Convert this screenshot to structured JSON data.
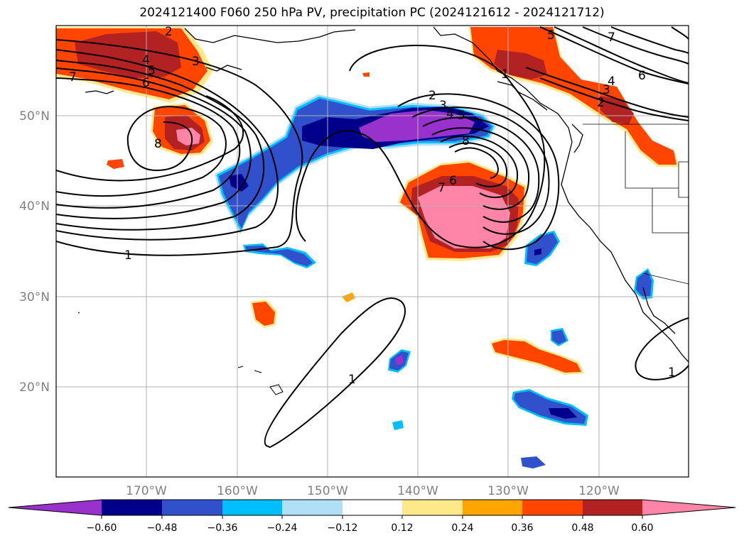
{
  "title": "2024121400 F060 250 hPa PV, precipitation PC (2024121612 - 2024121712)",
  "colors": {
    "c_neg_lt060": "#9932cc",
    "c_neg_048_060": "#00008b",
    "c_neg_036_048": "#3050cc",
    "c_neg_024_036": "#00bfff",
    "c_neg_012_024": "#b0e0f8",
    "c_neutral": "#ffffff",
    "c_pos_012_024": "#ffe88a",
    "c_pos_024_036": "#ffa500",
    "c_pos_036_048": "#ff4500",
    "c_pos_048_060": "#b22222",
    "c_pos_gt060": "#ff85a8"
  },
  "chart_data": {
    "type": "map",
    "lat_ticks": [
      "20°N",
      "30°N",
      "40°N",
      "50°N"
    ],
    "lon_ticks": [
      "170°W",
      "160°W",
      "150°W",
      "140°W",
      "130°W",
      "120°W"
    ],
    "colorbar_ticks": [
      "−0.60",
      "−0.48",
      "−0.36",
      "−0.24",
      "−0.12",
      "0.12",
      "0.24",
      "0.36",
      "0.48",
      "0.60"
    ],
    "contour_labels": [
      "1",
      "2",
      "3",
      "4",
      "5",
      "6",
      "7",
      "8",
      "1",
      "2",
      "3",
      "4",
      "5",
      "6",
      "7",
      "8",
      "2",
      "3",
      "4",
      "5",
      "6",
      "7",
      "1",
      "1"
    ]
  }
}
